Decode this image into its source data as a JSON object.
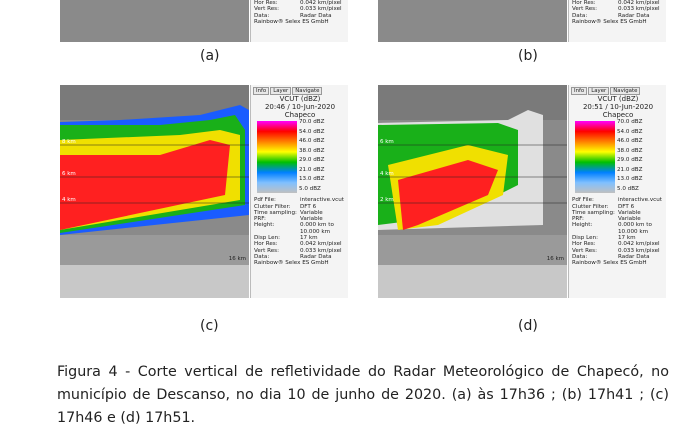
{
  "panels": [
    {
      "label": "(a)",
      "info_lines": [
        [
          "Hor Res:",
          "0.042 km/pixel"
        ],
        [
          "Vert Res:",
          "0.033 km/pixel"
        ],
        [
          "Data:",
          "Radar Data"
        ]
      ],
      "footer": "Rainbow® Selex ES GmbH"
    },
    {
      "label": "(b)",
      "info_lines": [
        [
          "Hor Res:",
          "0.042 km/pixel"
        ],
        [
          "Vert Res:",
          "0.033 km/pixel"
        ],
        [
          "Data:",
          "Radar Data"
        ]
      ],
      "footer": "Rainbow® Selex ES GmbH"
    },
    {
      "label": "(c)",
      "tabs": [
        "Info",
        "Layer",
        "Navigate"
      ],
      "title": "VCUT (dBZ)",
      "time": "20:46 / 10-Jun-2020",
      "site": "Chapeco",
      "legend": [
        "70.0 dBZ",
        "54.0 dBZ",
        "46.0 dBZ",
        "38.0 dBZ",
        "29.0 dBZ",
        "21.0 dBZ",
        "13.0 dBZ",
        "5.0 dBZ"
      ],
      "axis_labels": [
        "8 km",
        "6 km",
        "4 km",
        "16 km"
      ],
      "info_lines": [
        [
          "Pdf File:",
          "interactive.vcut"
        ],
        [
          "Clutter Filter:",
          "DFT 6"
        ],
        [
          "Time sampling:",
          "Variable"
        ],
        [
          "PRF:",
          "Variable"
        ],
        [
          "Height:",
          "0.000 km to"
        ],
        [
          "",
          "10.000 km"
        ],
        [
          "Disp Len:",
          "17 km"
        ],
        [
          "Hor Res:",
          "0.042 km/pixel"
        ],
        [
          "Vert Res:",
          "0.033 km/pixel"
        ],
        [
          "Data:",
          "Radar Data"
        ]
      ],
      "footer": "Rainbow® Selex ES GmbH"
    },
    {
      "label": "(d)",
      "tabs": [
        "Info",
        "Layer",
        "Navigate"
      ],
      "title": "VCUT (dBZ)",
      "time": "20:51 / 10-Jun-2020",
      "site": "Chapeco",
      "legend": [
        "70.0 dBZ",
        "54.0 dBZ",
        "46.0 dBZ",
        "38.0 dBZ",
        "29.0 dBZ",
        "21.0 dBZ",
        "13.0 dBZ",
        "5.0 dBZ"
      ],
      "axis_labels": [
        "6 km",
        "4 km",
        "2 km",
        "16 km"
      ],
      "info_lines": [
        [
          "Pdf File:",
          "interactive.vcut"
        ],
        [
          "Clutter Filter:",
          "DFT 6"
        ],
        [
          "Time sampling:",
          "Variable"
        ],
        [
          "PRF:",
          "Variable"
        ],
        [
          "Height:",
          "0.000 km to"
        ],
        [
          "",
          "10.000 km"
        ],
        [
          "Disp Len:",
          "17 km"
        ],
        [
          "Hor Res:",
          "0.042 km/pixel"
        ],
        [
          "Vert Res:",
          "0.033 km/pixel"
        ],
        [
          "Data:",
          "Radar Data"
        ]
      ],
      "footer": "Rainbow® Selex ES GmbH"
    }
  ],
  "caption": "Figura 4 - Corte vertical de refletividade do Radar Meteorológico de Chapecó, no município de Descanso, no dia 10 de junho de 2020. (a) às 17h36 ; (b) 17h41 ; (c) 17h46 e (d) 17h51."
}
